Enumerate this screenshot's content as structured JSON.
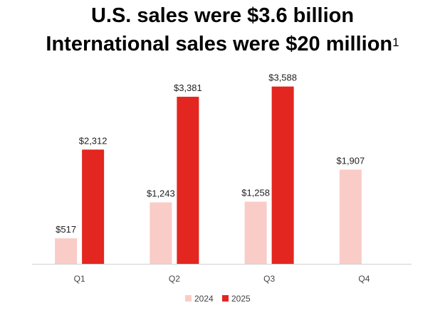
{
  "heading": {
    "line1": "U.S. sales were $3.6 billion",
    "line2": "International sales were $20 million",
    "footnote": "1"
  },
  "chart_data": {
    "type": "bar",
    "categories": [
      "Q1",
      "Q2",
      "Q3",
      "Q4"
    ],
    "series": [
      {
        "name": "2024",
        "color": "#f9ccc8",
        "values": [
          517,
          1243,
          1258,
          1907
        ],
        "labels": [
          "$517",
          "$1,243",
          "$1,258",
          "$1,907"
        ]
      },
      {
        "name": "2025",
        "color": "#e3261f",
        "values": [
          2312,
          3381,
          3588,
          null
        ],
        "labels": [
          "$2,312",
          "$3,381",
          "$3,588",
          null
        ]
      }
    ],
    "ylim": [
      0,
      3900
    ],
    "legend": "bottom-center",
    "grid": false
  }
}
